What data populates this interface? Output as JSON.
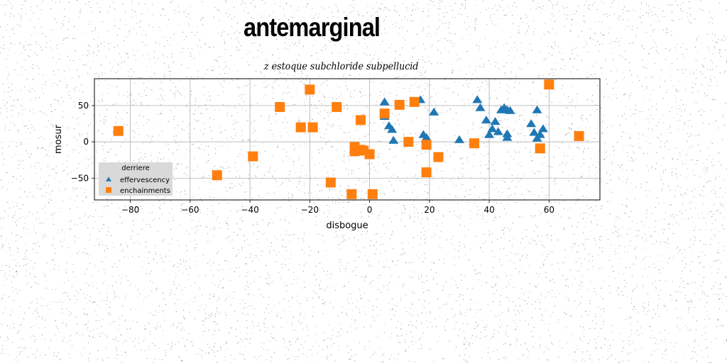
{
  "title": "antemarginal",
  "chart_data": {
    "type": "scatter",
    "title": "z estoque subchloride subpellucid",
    "xlabel": "disbogue",
    "ylabel": "mosur",
    "xlim": [
      -92,
      77
    ],
    "ylim": [
      -80,
      87
    ],
    "xticks": [
      -80,
      -60,
      -40,
      -20,
      0,
      20,
      40,
      60
    ],
    "yticks": [
      -50,
      0,
      50
    ],
    "grid": true,
    "legend": {
      "title": "derriere",
      "position": "lower-left"
    },
    "series": [
      {
        "name": "effervescency",
        "marker": "triangle",
        "color": "#1f77b4",
        "x": [
          5,
          5,
          6.5,
          7.5,
          8,
          17,
          18,
          19,
          21.5,
          30,
          36,
          37,
          39,
          40,
          41,
          42,
          43,
          44,
          45,
          46,
          47,
          46,
          46,
          54,
          55,
          56,
          56,
          57,
          58
        ],
        "y": [
          55,
          35,
          22,
          17,
          2,
          58,
          10,
          6,
          41,
          3,
          58,
          47,
          30,
          10,
          18,
          28,
          14,
          44,
          47,
          6,
          43,
          11,
          44,
          25,
          13,
          44,
          5,
          10,
          18
        ]
      },
      {
        "name": "enchainments",
        "marker": "square",
        "color": "#ff7f0e",
        "x": [
          -84,
          -51,
          -39,
          -30,
          -23,
          -20,
          -19,
          -13,
          -11,
          -6,
          -5,
          -5,
          -3,
          -3,
          -2,
          0,
          1,
          5,
          10,
          13,
          15,
          19,
          19,
          23,
          35,
          57,
          60,
          70
        ],
        "y": [
          15,
          -46,
          -20,
          48,
          20,
          72,
          20,
          -56,
          48,
          -72,
          -7,
          -13,
          30,
          -11,
          -12,
          -17,
          -72,
          39,
          51,
          0,
          55,
          -42,
          -4,
          -21,
          -2,
          -9,
          79,
          8
        ]
      }
    ]
  }
}
